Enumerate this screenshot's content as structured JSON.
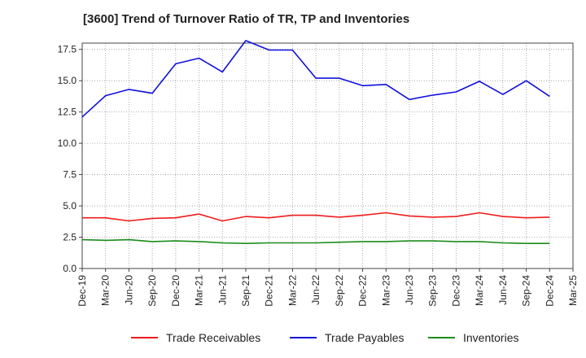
{
  "chart_data": {
    "type": "line",
    "title": "[3600]  Trend of Turnover Ratio of TR, TP and Inventories",
    "xlabel": "",
    "ylabel": "",
    "x": [
      "Dec-19",
      "Mar-20",
      "Jun-20",
      "Sep-20",
      "Dec-20",
      "Mar-21",
      "Jun-21",
      "Sep-21",
      "Dec-21",
      "Mar-22",
      "Jun-22",
      "Sep-22",
      "Dec-22",
      "Mar-23",
      "Jun-23",
      "Sep-23",
      "Dec-23",
      "Mar-24",
      "Jun-24",
      "Sep-24",
      "Dec-24"
    ],
    "x_ticks": [
      "Dec-19",
      "Mar-20",
      "Jun-20",
      "Sep-20",
      "Dec-20",
      "Mar-21",
      "Jun-21",
      "Sep-21",
      "Dec-21",
      "Mar-22",
      "Jun-22",
      "Sep-22",
      "Dec-22",
      "Mar-23",
      "Jun-23",
      "Sep-23",
      "Dec-23",
      "Mar-24",
      "Jun-24",
      "Sep-24",
      "Dec-24",
      "Mar-25"
    ],
    "y_ticks": [
      "0.0",
      "2.5",
      "5.0",
      "7.5",
      "10.0",
      "12.5",
      "15.0",
      "17.5"
    ],
    "ylim": [
      0,
      18.0
    ],
    "grid": true,
    "legend_position": "bottom",
    "series": [
      {
        "name": "Trade Receivables",
        "color": "#ee1c1c",
        "values": [
          4.05,
          4.05,
          3.8,
          4.0,
          4.05,
          4.35,
          3.8,
          4.15,
          4.05,
          4.25,
          4.25,
          4.1,
          4.25,
          4.45,
          4.2,
          4.1,
          4.15,
          4.45,
          4.15,
          4.05,
          4.1
        ]
      },
      {
        "name": "Trade Payables",
        "color": "#1010dd",
        "values": [
          12.1,
          13.8,
          14.3,
          14.0,
          16.35,
          16.8,
          15.7,
          18.2,
          17.45,
          17.45,
          15.2,
          15.2,
          14.6,
          14.7,
          13.5,
          13.85,
          14.1,
          14.95,
          13.9,
          15.0,
          13.75
        ]
      },
      {
        "name": "Inventories",
        "color": "#1a8c1a",
        "values": [
          2.3,
          2.25,
          2.3,
          2.15,
          2.2,
          2.15,
          2.05,
          2.0,
          2.05,
          2.05,
          2.05,
          2.1,
          2.15,
          2.15,
          2.2,
          2.2,
          2.15,
          2.15,
          2.05,
          2.0,
          2.0
        ]
      }
    ]
  }
}
